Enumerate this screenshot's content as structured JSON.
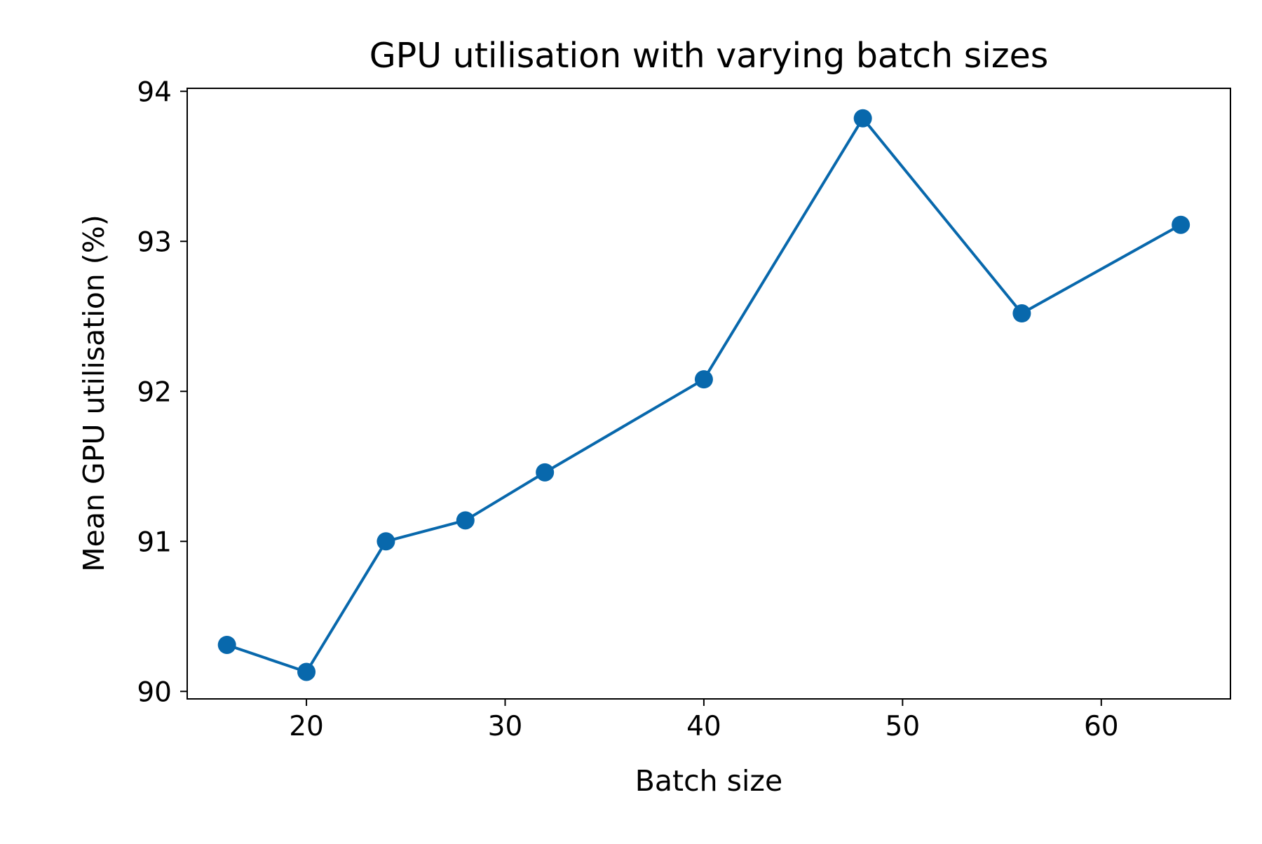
{
  "chart_data": {
    "type": "line",
    "title": "GPU utilisation with varying batch sizes",
    "xlabel": "Batch size",
    "ylabel": "Mean GPU utilisation (%)",
    "xlim": [
      14,
      66.5
    ],
    "ylim": [
      89.95,
      94.02
    ],
    "x_ticks": [
      20,
      30,
      40,
      50,
      60
    ],
    "y_ticks": [
      90,
      91,
      92,
      93,
      94
    ],
    "grid": false,
    "legend": "none",
    "series": [
      {
        "color": "#0868ac",
        "marker": "circle",
        "x": [
          16,
          20,
          24,
          28,
          32,
          40,
          48,
          56,
          64
        ],
        "y": [
          90.31,
          90.13,
          91.0,
          91.14,
          91.46,
          92.08,
          93.82,
          92.52,
          93.11
        ]
      }
    ]
  }
}
